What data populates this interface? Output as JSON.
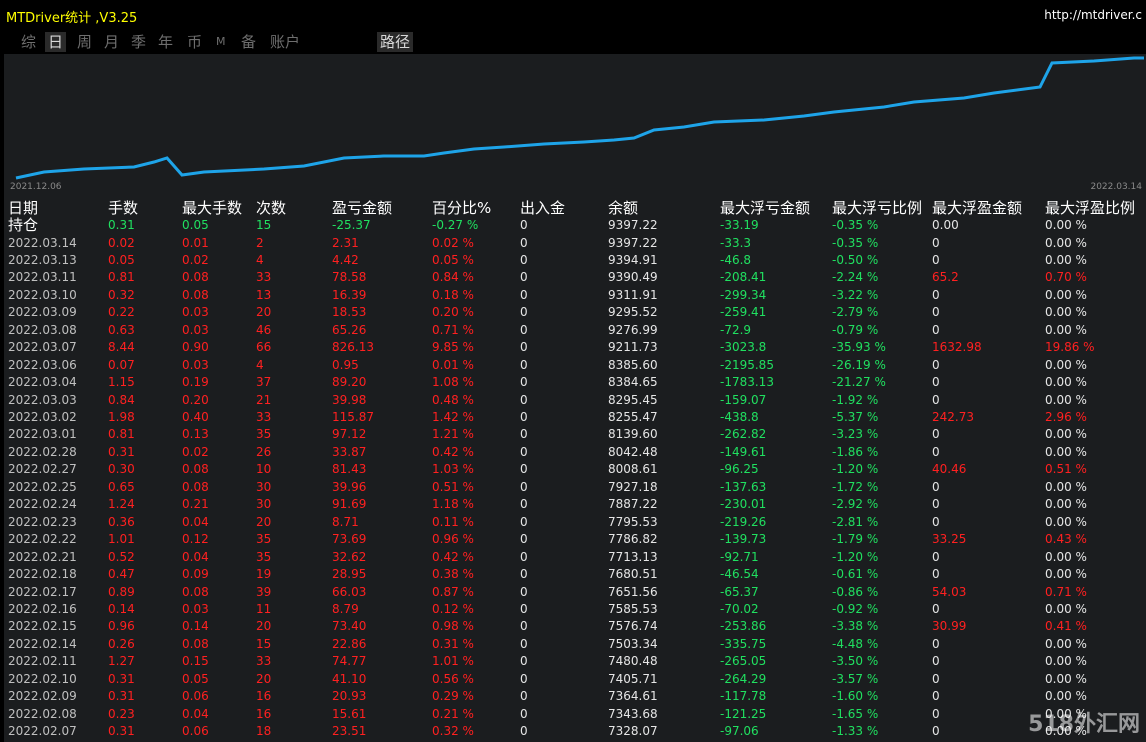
{
  "header": {
    "app_title": "MTDriver统计 ,V3.25",
    "site_url": "http://mtdriver.c"
  },
  "tabs": [
    {
      "label": "综",
      "active": false
    },
    {
      "label": "日",
      "active": true
    },
    {
      "label": "周",
      "active": false
    },
    {
      "label": "月",
      "active": false
    },
    {
      "label": "季",
      "active": false
    },
    {
      "label": "年",
      "active": false
    },
    {
      "label": "币",
      "active": false
    },
    {
      "label": "M",
      "active": false
    },
    {
      "label": "备",
      "active": false
    },
    {
      "label": "账户",
      "active": false
    },
    {
      "label": "路径",
      "active": true
    }
  ],
  "chart": {
    "start_label": "2021.12.06",
    "end_label": "2022.03.14",
    "line_color": "#1ea4e9"
  },
  "table": {
    "columns": [
      "日期",
      "手数",
      "最大手数",
      "次数",
      "盈亏金额",
      "百分比%",
      "出入金",
      "余额",
      "最大浮亏金额",
      "最大浮亏比例",
      "最大浮盈金额",
      "最大浮盈比例"
    ],
    "holding": {
      "label": "持仓",
      "lots": "0.31",
      "max_lots": "0.05",
      "count": "15",
      "pnl": "-25.37",
      "pct": "-0.27 %",
      "inout": "0",
      "balance": "9397.22",
      "max_float_loss": "-33.19",
      "max_float_loss_pct": "-0.35 %",
      "max_float_profit": "0.00",
      "max_float_profit_pct": "0.00 %"
    },
    "rows": [
      [
        "2022.03.14",
        "0.02",
        "0.01",
        "2",
        "2.31",
        "0.02 %",
        "0",
        "9397.22",
        "-33.3",
        "-0.35 %",
        "0",
        "0.00 %"
      ],
      [
        "2022.03.13",
        "0.05",
        "0.02",
        "4",
        "4.42",
        "0.05 %",
        "0",
        "9394.91",
        "-46.8",
        "-0.50 %",
        "0",
        "0.00 %"
      ],
      [
        "2022.03.11",
        "0.81",
        "0.08",
        "33",
        "78.58",
        "0.84 %",
        "0",
        "9390.49",
        "-208.41",
        "-2.24 %",
        "65.2",
        "0.70 %"
      ],
      [
        "2022.03.10",
        "0.32",
        "0.08",
        "13",
        "16.39",
        "0.18 %",
        "0",
        "9311.91",
        "-299.34",
        "-3.22 %",
        "0",
        "0.00 %"
      ],
      [
        "2022.03.09",
        "0.22",
        "0.03",
        "20",
        "18.53",
        "0.20 %",
        "0",
        "9295.52",
        "-259.41",
        "-2.79 %",
        "0",
        "0.00 %"
      ],
      [
        "2022.03.08",
        "0.63",
        "0.03",
        "46",
        "65.26",
        "0.71 %",
        "0",
        "9276.99",
        "-72.9",
        "-0.79 %",
        "0",
        "0.00 %"
      ],
      [
        "2022.03.07",
        "8.44",
        "0.90",
        "66",
        "826.13",
        "9.85 %",
        "0",
        "9211.73",
        "-3023.8",
        "-35.93 %",
        "1632.98",
        "19.86 %"
      ],
      [
        "2022.03.06",
        "0.07",
        "0.03",
        "4",
        "0.95",
        "0.01 %",
        "0",
        "8385.60",
        "-2195.85",
        "-26.19 %",
        "0",
        "0.00 %"
      ],
      [
        "2022.03.04",
        "1.15",
        "0.19",
        "37",
        "89.20",
        "1.08 %",
        "0",
        "8384.65",
        "-1783.13",
        "-21.27 %",
        "0",
        "0.00 %"
      ],
      [
        "2022.03.03",
        "0.84",
        "0.20",
        "21",
        "39.98",
        "0.48 %",
        "0",
        "8295.45",
        "-159.07",
        "-1.92 %",
        "0",
        "0.00 %"
      ],
      [
        "2022.03.02",
        "1.98",
        "0.40",
        "33",
        "115.87",
        "1.42 %",
        "0",
        "8255.47",
        "-438.8",
        "-5.37 %",
        "242.73",
        "2.96 %"
      ],
      [
        "2022.03.01",
        "0.81",
        "0.13",
        "35",
        "97.12",
        "1.21 %",
        "0",
        "8139.60",
        "-262.82",
        "-3.23 %",
        "0",
        "0.00 %"
      ],
      [
        "2022.02.28",
        "0.31",
        "0.02",
        "26",
        "33.87",
        "0.42 %",
        "0",
        "8042.48",
        "-149.61",
        "-1.86 %",
        "0",
        "0.00 %"
      ],
      [
        "2022.02.27",
        "0.30",
        "0.08",
        "10",
        "81.43",
        "1.03 %",
        "0",
        "8008.61",
        "-96.25",
        "-1.20 %",
        "40.46",
        "0.51 %"
      ],
      [
        "2022.02.25",
        "0.65",
        "0.08",
        "30",
        "39.96",
        "0.51 %",
        "0",
        "7927.18",
        "-137.63",
        "-1.72 %",
        "0",
        "0.00 %"
      ],
      [
        "2022.02.24",
        "1.24",
        "0.21",
        "30",
        "91.69",
        "1.18 %",
        "0",
        "7887.22",
        "-230.01",
        "-2.92 %",
        "0",
        "0.00 %"
      ],
      [
        "2022.02.23",
        "0.36",
        "0.04",
        "20",
        "8.71",
        "0.11 %",
        "0",
        "7795.53",
        "-219.26",
        "-2.81 %",
        "0",
        "0.00 %"
      ],
      [
        "2022.02.22",
        "1.01",
        "0.12",
        "35",
        "73.69",
        "0.96 %",
        "0",
        "7786.82",
        "-139.73",
        "-1.79 %",
        "33.25",
        "0.43 %"
      ],
      [
        "2022.02.21",
        "0.52",
        "0.04",
        "35",
        "32.62",
        "0.42 %",
        "0",
        "7713.13",
        "-92.71",
        "-1.20 %",
        "0",
        "0.00 %"
      ],
      [
        "2022.02.18",
        "0.47",
        "0.09",
        "19",
        "28.95",
        "0.38 %",
        "0",
        "7680.51",
        "-46.54",
        "-0.61 %",
        "0",
        "0.00 %"
      ],
      [
        "2022.02.17",
        "0.89",
        "0.08",
        "39",
        "66.03",
        "0.87 %",
        "0",
        "7651.56",
        "-65.37",
        "-0.86 %",
        "54.03",
        "0.71 %"
      ],
      [
        "2022.02.16",
        "0.14",
        "0.03",
        "11",
        "8.79",
        "0.12 %",
        "0",
        "7585.53",
        "-70.02",
        "-0.92 %",
        "0",
        "0.00 %"
      ],
      [
        "2022.02.15",
        "0.96",
        "0.14",
        "20",
        "73.40",
        "0.98 %",
        "0",
        "7576.74",
        "-253.86",
        "-3.38 %",
        "30.99",
        "0.41 %"
      ],
      [
        "2022.02.14",
        "0.26",
        "0.08",
        "15",
        "22.86",
        "0.31 %",
        "0",
        "7503.34",
        "-335.75",
        "-4.48 %",
        "0",
        "0.00 %"
      ],
      [
        "2022.02.11",
        "1.27",
        "0.15",
        "33",
        "74.77",
        "1.01 %",
        "0",
        "7480.48",
        "-265.05",
        "-3.50 %",
        "0",
        "0.00 %"
      ],
      [
        "2022.02.10",
        "0.31",
        "0.05",
        "20",
        "41.10",
        "0.56 %",
        "0",
        "7405.71",
        "-264.29",
        "-3.57 %",
        "0",
        "0.00 %"
      ],
      [
        "2022.02.09",
        "0.31",
        "0.06",
        "16",
        "20.93",
        "0.29 %",
        "0",
        "7364.61",
        "-117.78",
        "-1.60 %",
        "0",
        "0.00 %"
      ],
      [
        "2022.02.08",
        "0.23",
        "0.04",
        "16",
        "15.61",
        "0.21 %",
        "0",
        "7343.68",
        "-121.25",
        "-1.65 %",
        "0",
        "0.00 %"
      ],
      [
        "2022.02.07",
        "0.31",
        "0.06",
        "18",
        "23.51",
        "0.32 %",
        "0",
        "7328.07",
        "-97.06",
        "-1.33 %",
        "0",
        "0.00 %"
      ]
    ]
  },
  "watermark": "518外汇网",
  "colors": {
    "title": "#ffff00",
    "positive": "#20e060",
    "negative": "#ff2020",
    "panel": "#1b1d1f"
  }
}
